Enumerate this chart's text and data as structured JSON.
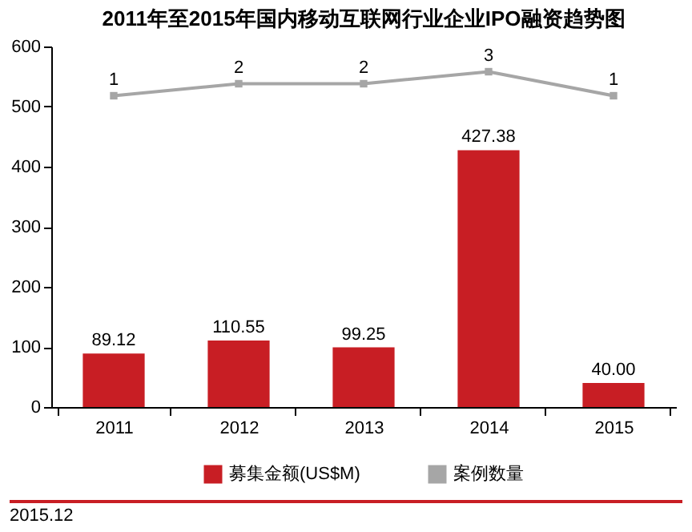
{
  "chart_data": {
    "type": "bar",
    "title": "2011年至2015年国内移动互联网行业企业IPO融资趋势图",
    "categories": [
      "2011",
      "2012",
      "2013",
      "2014",
      "2015"
    ],
    "series": [
      {
        "name": "募集金额(US$M)",
        "color": "#c81e24",
        "values": [
          89.12,
          110.55,
          99.25,
          427.38,
          40.0
        ],
        "value_labels": [
          "89.12",
          "110.55",
          "99.25",
          "427.38",
          "40.00"
        ]
      },
      {
        "name": "案例数量",
        "type": "line",
        "axis": "y2",
        "color": "#a6a6a6",
        "values": [
          1,
          2,
          2,
          3,
          1
        ],
        "value_labels": [
          "1",
          "2",
          "2",
          "3",
          "1"
        ]
      }
    ],
    "ylim": [
      0,
      600
    ],
    "yticks": [
      0,
      100,
      200,
      300,
      400,
      500,
      600
    ],
    "y2lim": [
      -24.9,
      5.1
    ],
    "tick_labels": "xy",
    "marker": "square",
    "line_style": "solid",
    "legend": "bottom",
    "grid": false,
    "annotations": [
      "2015.12"
    ]
  }
}
